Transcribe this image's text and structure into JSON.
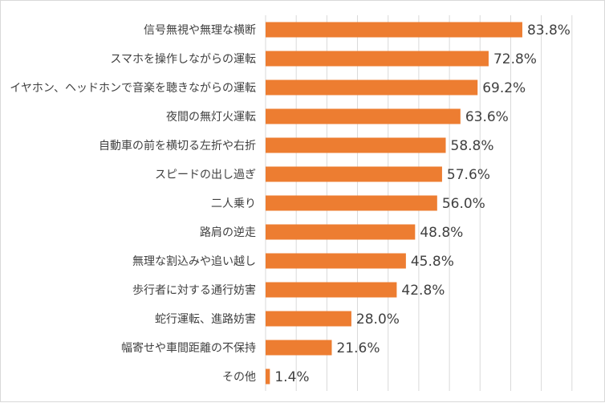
{
  "chart_data": {
    "type": "bar",
    "orientation": "horizontal",
    "categories": [
      "信号無視や無理な横断",
      "スマホを操作しながらの運転",
      "イヤホン、ヘッドホンで音楽を聴きながらの運転",
      "夜間の無灯火運転",
      "自動車の前を横切る左折や右折",
      "スピードの出し過ぎ",
      "二人乗り",
      "路肩の逆走",
      "無理な割込みや追い越し",
      "歩行者に対する通行妨害",
      "蛇行運転、進路妨害",
      "幅寄せや車間距離の不保持",
      "その他"
    ],
    "values": [
      83.8,
      72.8,
      69.2,
      63.6,
      58.8,
      57.6,
      56.0,
      48.8,
      45.8,
      42.8,
      28.0,
      21.6,
      1.4
    ],
    "value_labels": [
      "83.8%",
      "72.8%",
      "69.2%",
      "63.6%",
      "58.8%",
      "57.6%",
      "56.0%",
      "48.8%",
      "45.8%",
      "42.8%",
      "28.0%",
      "21.6%",
      "1.4%"
    ],
    "xlim": [
      0,
      100
    ],
    "grid": true,
    "bar_color": "#ED7D31",
    "grid_color": "#d9d9d9"
  }
}
